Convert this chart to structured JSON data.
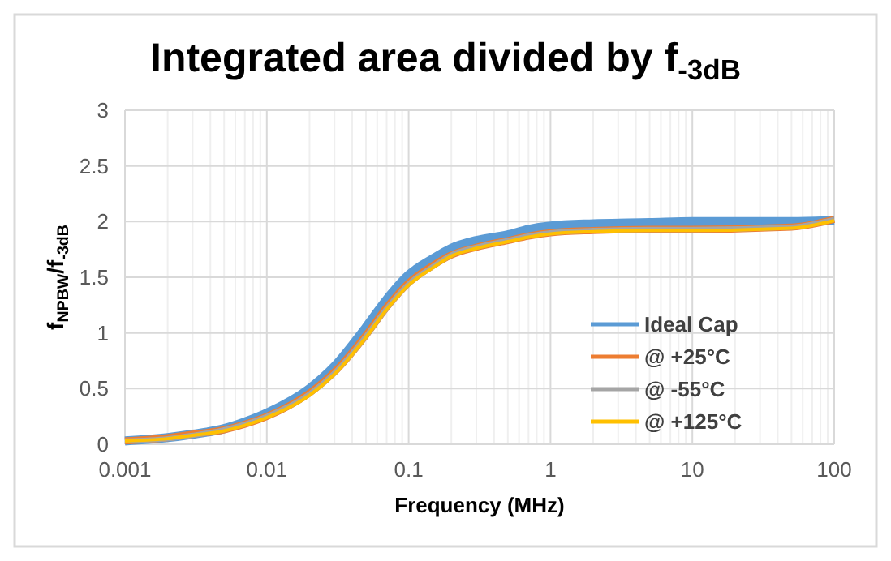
{
  "chart_data": {
    "type": "line",
    "title": "Integrated area divided by f$_{-3dB}$",
    "xlabel": "Frequency (MHz)",
    "ylabel": "f$_{NPBW}$/f$_{-3dB}$",
    "log": "x",
    "grid": true,
    "legend": "bottom right",
    "xlim": [
      0.001,
      100
    ],
    "xticks": [
      0.001,
      0.01,
      0.1,
      1,
      10,
      100
    ],
    "ylim": [
      0,
      3
    ],
    "yticks": [
      0,
      0.5,
      1,
      1.5,
      2,
      2.5,
      3
    ],
    "x": [
      0.001,
      0.002,
      0.003,
      0.005,
      0.007,
      0.01,
      0.02,
      0.03,
      0.05,
      0.07,
      0.1,
      0.15,
      0.2,
      0.3,
      0.5,
      0.7,
      1,
      2,
      5,
      10,
      50,
      100
    ],
    "series": [
      {
        "name": "Ideal Cap",
        "color": "#5b9bd5",
        "values": [
          0.03,
          0.06,
          0.09,
          0.14,
          0.2,
          0.28,
          0.5,
          0.7,
          1.05,
          1.3,
          1.52,
          1.67,
          1.76,
          1.83,
          1.88,
          1.93,
          1.96,
          1.98,
          1.99,
          2.0,
          2.0,
          2.01
        ]
      },
      {
        "name": "@ +25°C",
        "color": "#ed7d31",
        "values": [
          0.03,
          0.06,
          0.09,
          0.13,
          0.18,
          0.25,
          0.46,
          0.65,
          0.98,
          1.23,
          1.45,
          1.61,
          1.7,
          1.77,
          1.83,
          1.87,
          1.9,
          1.92,
          1.93,
          1.93,
          1.95,
          2.02
        ]
      },
      {
        "name": "@ -55°C",
        "color": "#a5a5a5",
        "values": [
          0.03,
          0.05,
          0.08,
          0.13,
          0.18,
          0.25,
          0.45,
          0.64,
          0.97,
          1.22,
          1.44,
          1.6,
          1.7,
          1.77,
          1.83,
          1.87,
          1.9,
          1.92,
          1.93,
          1.93,
          1.95,
          2.02
        ]
      },
      {
        "name": "@ +125°C",
        "color": "#ffc000",
        "values": [
          0.03,
          0.05,
          0.08,
          0.12,
          0.17,
          0.24,
          0.44,
          0.63,
          0.96,
          1.21,
          1.43,
          1.59,
          1.69,
          1.76,
          1.82,
          1.86,
          1.89,
          1.91,
          1.92,
          1.92,
          1.94,
          2.01
        ]
      }
    ]
  }
}
